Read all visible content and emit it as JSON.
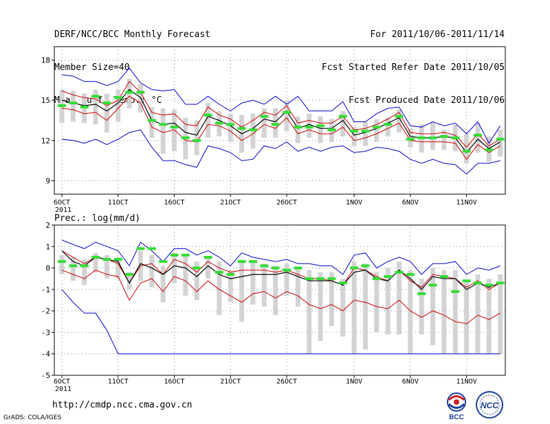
{
  "header": {
    "left": [
      "DERF/NCC/BCC Monthly Forecast",
      "Member Size=40",
      "Mean Surf. Temp.: °C"
    ],
    "right": [
      "For 2011/10/06-2011/11/14",
      "Fcst Started Refer Date 2011/10/05",
      "Fcst Produced Date 2011/10/06"
    ]
  },
  "footer": {
    "url": "http://cmdp.ncc.cma.gov.cn",
    "credit": "GrADS: COLA/IGES",
    "logo_bcc": "BCC",
    "logo_ncc": "NCC"
  },
  "colors": {
    "envelope": "#0000cc",
    "band": "#cc0000",
    "ens_mean": "#000000",
    "box": "#d3d3d3",
    "obs_mark": "#33dd33"
  },
  "chart_data": [
    {
      "type": "line",
      "title": "Mean Surf. Temp.: °C",
      "xlabel": "",
      "ylabel": "",
      "x_start_label_year": "2011",
      "xticks": [
        {
          "day": 1,
          "label": "6OCT"
        },
        {
          "day": 6,
          "label": "11OCT"
        },
        {
          "day": 11,
          "label": "16OCT"
        },
        {
          "day": 16,
          "label": "21OCT"
        },
        {
          "day": 21,
          "label": "26OCT"
        },
        {
          "day": 27,
          "label": "1NOV"
        },
        {
          "day": 32,
          "label": "6NOV"
        },
        {
          "day": 37,
          "label": "11NOV"
        }
      ],
      "ylim": [
        8,
        19
      ],
      "yticks": [
        9,
        12,
        15,
        18
      ],
      "grid": true,
      "days": [
        1,
        2,
        3,
        4,
        5,
        6,
        7,
        8,
        9,
        10,
        11,
        12,
        13,
        14,
        15,
        16,
        17,
        18,
        19,
        20,
        21,
        22,
        23,
        24,
        25,
        26,
        27,
        28,
        29,
        30,
        31,
        32,
        33,
        34,
        35,
        36,
        37,
        38,
        39,
        40
      ],
      "series": [
        {
          "name": "max",
          "color": "#0000cc",
          "values": [
            16.9,
            16.8,
            16.4,
            16.4,
            16.1,
            16.4,
            17.4,
            16.3,
            15.8,
            15.7,
            15.8,
            14.7,
            14.7,
            15.3,
            14.7,
            14.2,
            14.8,
            15.0,
            14.7,
            15.3,
            14.7,
            15.3,
            14.2,
            14.2,
            14.2,
            14.9,
            13.4,
            13.4,
            14.0,
            14.4,
            14.5,
            13.1,
            13.0,
            13.4,
            13.1,
            13.3,
            12.5,
            13.4,
            11.8,
            13.1
          ]
        },
        {
          "name": "upper",
          "color": "#cc0000",
          "values": [
            15.7,
            15.4,
            15.2,
            15.1,
            14.6,
            15.0,
            16.4,
            15.6,
            14.1,
            13.9,
            14.0,
            13.2,
            13.1,
            14.5,
            13.9,
            13.6,
            13.0,
            13.5,
            14.1,
            13.9,
            14.6,
            13.3,
            13.5,
            13.3,
            13.3,
            13.8,
            12.8,
            12.9,
            13.2,
            13.6,
            14.1,
            12.6,
            12.5,
            12.5,
            12.6,
            12.4,
            11.5,
            12.5,
            11.6,
            12.1
          ]
        },
        {
          "name": "mean",
          "color": "#000000",
          "values": [
            15.0,
            14.8,
            14.6,
            14.7,
            14.2,
            14.8,
            15.8,
            15.2,
            13.5,
            13.2,
            13.3,
            12.6,
            12.4,
            13.8,
            13.5,
            13.1,
            12.5,
            12.9,
            13.6,
            13.4,
            14.2,
            12.9,
            13.2,
            12.9,
            12.9,
            13.5,
            12.4,
            12.6,
            12.9,
            13.3,
            13.7,
            12.3,
            12.2,
            12.2,
            12.3,
            12.2,
            11.1,
            12.1,
            11.4,
            11.9
          ]
        },
        {
          "name": "lower",
          "color": "#cc0000",
          "values": [
            14.4,
            14.3,
            14.0,
            14.1,
            13.5,
            14.4,
            15.3,
            14.8,
            13.0,
            12.6,
            12.8,
            12.0,
            11.9,
            13.2,
            13.1,
            12.7,
            12.0,
            12.5,
            13.2,
            12.9,
            13.7,
            12.5,
            12.8,
            12.5,
            12.5,
            13.0,
            12.0,
            12.2,
            12.5,
            12.9,
            13.3,
            12.0,
            11.9,
            11.9,
            11.9,
            11.8,
            10.6,
            11.7,
            11.1,
            11.6
          ]
        },
        {
          "name": "min",
          "color": "#0000cc",
          "values": [
            12.1,
            12.0,
            11.8,
            12.1,
            11.7,
            12.1,
            12.6,
            12.8,
            11.5,
            10.5,
            10.5,
            10.2,
            10.0,
            11.6,
            11.4,
            11.1,
            10.5,
            10.6,
            11.6,
            11.4,
            11.9,
            11.2,
            11.5,
            11.2,
            11.5,
            11.6,
            11.1,
            11.2,
            11.5,
            11.4,
            11.2,
            10.6,
            10.3,
            10.6,
            10.3,
            10.2,
            9.5,
            10.3,
            10.3,
            10.5
          ]
        }
      ],
      "boxes": {
        "low": [
          13.3,
          13.4,
          13.3,
          13.2,
          12.6,
          13.4,
          14.4,
          14.1,
          12.2,
          11.0,
          11.2,
          10.6,
          10.9,
          12.2,
          12.3,
          11.9,
          11.1,
          11.4,
          12.2,
          12.2,
          12.7,
          11.8,
          12.2,
          11.8,
          11.9,
          12.3,
          11.6,
          11.6,
          11.9,
          12.3,
          12.6,
          11.5,
          11.1,
          11.3,
          11.3,
          11.2,
          10.3,
          11.1,
          10.4,
          10.8
        ],
        "high": [
          15.8,
          15.7,
          15.5,
          15.8,
          15.5,
          15.8,
          16.6,
          16.2,
          14.5,
          14.4,
          14.3,
          13.7,
          13.5,
          14.8,
          14.2,
          14.0,
          13.9,
          14.0,
          14.4,
          14.4,
          15.0,
          13.8,
          14.0,
          13.8,
          13.6,
          14.2,
          13.0,
          13.4,
          13.6,
          13.7,
          14.3,
          12.9,
          13.2,
          13.4,
          12.8,
          13.2,
          12.5,
          13.3,
          12.3,
          12.8
        ]
      },
      "obs_marks": [
        14.6,
        14.8,
        14.5,
        15.3,
        14.8,
        15.2,
        15.6,
        15.6,
        13.5,
        13.2,
        13.0,
        12.2,
        12.0,
        13.9,
        13.3,
        13.2,
        12.9,
        12.8,
        13.8,
        13.2,
        14.1,
        13.0,
        13.0,
        13.1,
        12.8,
        13.8,
        12.7,
        12.7,
        13.0,
        13.2,
        13.8,
        12.1,
        12.2,
        12.2,
        12.3,
        12.2,
        11.2,
        12.4,
        11.3,
        12.1
      ]
    },
    {
      "type": "line",
      "title": "Prec.: log(mm/d)",
      "xlabel": "",
      "ylabel": "",
      "x_start_label_year": "2011",
      "xticks": [
        {
          "day": 1,
          "label": "6OCT"
        },
        {
          "day": 6,
          "label": "11OCT"
        },
        {
          "day": 11,
          "label": "16OCT"
        },
        {
          "day": 16,
          "label": "21OCT"
        },
        {
          "day": 21,
          "label": "26OCT"
        },
        {
          "day": 27,
          "label": "1NOV"
        },
        {
          "day": 32,
          "label": "6NOV"
        },
        {
          "day": 37,
          "label": "11NOV"
        }
      ],
      "ylim": [
        -5,
        2
      ],
      "yticks": [
        -5,
        -4,
        -3,
        -2,
        -1,
        0,
        1,
        2
      ],
      "grid": true,
      "days": [
        1,
        2,
        3,
        4,
        5,
        6,
        7,
        8,
        9,
        10,
        11,
        12,
        13,
        14,
        15,
        16,
        17,
        18,
        19,
        20,
        21,
        22,
        23,
        24,
        25,
        26,
        27,
        28,
        29,
        30,
        31,
        32,
        33,
        34,
        35,
        36,
        37,
        38,
        39,
        40
      ],
      "series": [
        {
          "name": "max",
          "color": "#0000cc",
          "values": [
            1.3,
            1.1,
            0.9,
            1.2,
            1.0,
            0.8,
            0.1,
            1.2,
            0.8,
            0.3,
            0.9,
            0.9,
            0.6,
            0.8,
            0.5,
            0.1,
            0.7,
            0.5,
            0.4,
            0.3,
            0.4,
            0.2,
            0.2,
            0.1,
            0.1,
            -0.3,
            0.6,
            0.7,
            0.0,
            0.3,
            0.5,
            0.3,
            -0.3,
            0.2,
            0.2,
            0.3,
            -0.3,
            0.0,
            -0.1,
            0.1
          ]
        },
        {
          "name": "upper",
          "color": "#cc0000",
          "values": [
            0.8,
            0.5,
            0.2,
            0.5,
            0.4,
            0.2,
            -0.7,
            0.1,
            0.2,
            -0.3,
            0.4,
            0.2,
            -0.2,
            0.3,
            0.0,
            -0.2,
            -0.1,
            -0.1,
            -0.1,
            -0.2,
            -0.1,
            -0.3,
            -0.5,
            -0.5,
            -0.6,
            -0.8,
            0.0,
            -0.1,
            -0.4,
            -0.6,
            -0.1,
            -0.6,
            -0.9,
            -0.3,
            -0.4,
            -0.5,
            -0.9,
            -0.6,
            -1.0,
            -0.7
          ]
        },
        {
          "name": "mean",
          "color": "#000000",
          "values": [
            0.8,
            0.3,
            0.1,
            0.5,
            0.4,
            0.3,
            -0.7,
            0.2,
            0.0,
            -0.3,
            0.1,
            0.0,
            -0.4,
            0.1,
            -0.3,
            -0.5,
            -0.4,
            -0.3,
            -0.3,
            -0.3,
            -0.2,
            -0.4,
            -0.6,
            -0.6,
            -0.6,
            -0.8,
            -0.2,
            -0.1,
            -0.5,
            -0.6,
            -0.1,
            -0.5,
            -1.0,
            -0.4,
            -0.5,
            -0.5,
            -1.0,
            -0.7,
            -0.9,
            -0.7
          ]
        },
        {
          "name": "lower",
          "color": "#cc0000",
          "values": [
            -0.1,
            -0.3,
            -0.5,
            -0.1,
            -0.3,
            -0.4,
            -1.5,
            -0.7,
            -0.5,
            -1.1,
            -0.4,
            -0.6,
            -1.1,
            -0.6,
            -1.0,
            -1.3,
            -1.6,
            -1.2,
            -1.1,
            -1.4,
            -1.1,
            -1.3,
            -1.7,
            -1.9,
            -1.7,
            -2.0,
            -1.5,
            -1.6,
            -1.8,
            -1.9,
            -1.5,
            -2.0,
            -2.3,
            -2.0,
            -2.2,
            -2.5,
            -2.6,
            -2.2,
            -2.4,
            -2.1
          ]
        },
        {
          "name": "min",
          "color": "#0000cc",
          "values": [
            -1.0,
            -1.6,
            -2.1,
            -2.1,
            -2.9,
            -4.0,
            -4.0,
            -4.0,
            -4.0,
            -4.0,
            -4.0,
            -4.0,
            -4.0,
            -4.0,
            -4.0,
            -4.0,
            -4.0,
            -4.0,
            -4.0,
            -4.0,
            -4.0,
            -4.0,
            -4.0,
            -4.0,
            -4.0,
            -4.0,
            -4.0,
            -4.0,
            -4.0,
            -4.0,
            -4.0,
            -4.0,
            -4.0,
            -4.0,
            -4.0,
            -4.0,
            -4.0,
            -4.0,
            -4.0,
            -4.0
          ]
        }
      ],
      "boxes": {
        "low": [
          -0.3,
          -0.6,
          -0.8,
          -0.2,
          -0.5,
          -0.5,
          -1.0,
          -0.6,
          -0.9,
          -1.6,
          -0.7,
          -1.3,
          -1.5,
          -0.5,
          -2.2,
          -1.6,
          -2.5,
          -1.7,
          -1.8,
          -2.2,
          -1.3,
          -1.8,
          -4.0,
          -3.4,
          -2.7,
          -3.2,
          -4.0,
          -3.8,
          -3.0,
          -3.1,
          -3.1,
          -4.0,
          -3.1,
          -3.6,
          -4.0,
          -4.0,
          -4.0,
          -4.0,
          -4.0,
          -4.0
        ],
        "high": [
          0.6,
          0.5,
          0.4,
          0.7,
          0.6,
          0.5,
          -0.2,
          0.8,
          0.6,
          0.1,
          0.7,
          0.6,
          0.3,
          0.5,
          0.3,
          -0.1,
          0.3,
          0.3,
          0.2,
          0.1,
          0.2,
          0.0,
          -0.1,
          -0.2,
          -0.2,
          -0.5,
          0.3,
          0.2,
          -0.2,
          0.0,
          0.3,
          -0.1,
          -0.5,
          0.0,
          -0.1,
          -0.1,
          -0.6,
          -0.3,
          -0.5,
          -0.3
        ]
      },
      "obs_marks": [
        0.3,
        0.1,
        0.1,
        0.5,
        0.4,
        0.4,
        -0.3,
        0.9,
        0.9,
        0.3,
        0.6,
        0.6,
        0.0,
        0.5,
        -0.2,
        -0.3,
        0.3,
        0.3,
        0.1,
        0.0,
        -0.1,
        0.0,
        -0.5,
        -0.5,
        -0.5,
        -0.7,
        0.0,
        0.1,
        -0.5,
        -0.4,
        -0.2,
        -0.3,
        -1.2,
        -0.8,
        -0.4,
        -1.1,
        -0.6,
        -0.7,
        -0.8,
        -0.7
      ]
    }
  ]
}
